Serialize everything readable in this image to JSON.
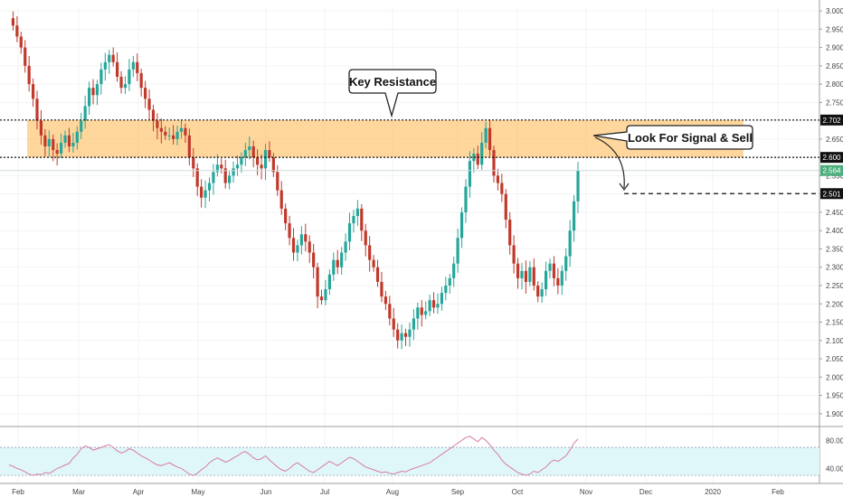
{
  "chart_data": {
    "type": "candlestick",
    "price_axis": {
      "ticks": [
        "3.000",
        "2.950",
        "2.900",
        "2.850",
        "2.800",
        "2.750",
        "2.700",
        "2.650",
        "2.600",
        "2.550",
        "2.500",
        "2.450",
        "2.400",
        "2.350",
        "2.300",
        "2.250",
        "2.200",
        "2.150",
        "2.100",
        "2.050",
        "2.000",
        "1.950",
        "1.900"
      ],
      "ylim": [
        1.87,
        3.01
      ]
    },
    "time_axis": {
      "labels": [
        "Feb",
        "Mar",
        "Apr",
        "May",
        "Jun",
        "Jul",
        "Aug",
        "Sep",
        "Oct",
        "Nov",
        "Dec",
        "2020",
        "Feb"
      ]
    },
    "levels": [
      {
        "label": "2.702",
        "value": 2.702,
        "style": "dotted"
      },
      {
        "label": "2.600",
        "value": 2.6,
        "style": "dotted"
      },
      {
        "label": "2.564",
        "value": 2.564,
        "style": "last-price"
      },
      {
        "label": "2.501",
        "value": 2.501,
        "style": "dashed-target"
      }
    ],
    "resistance_zone": {
      "from": 2.6,
      "to": 2.702,
      "color": "#f9a825"
    },
    "annotations": [
      {
        "text": "Key Resistance"
      },
      {
        "text": "Look For Signal & Sell"
      }
    ],
    "colors": {
      "up": "#26a69a",
      "down": "#c0392b",
      "zone": "#ffb74d",
      "rsi_band": "#e0f7fa",
      "rsi_line": "#d77aa6"
    },
    "closes": [
      2.98,
      2.96,
      2.93,
      2.9,
      2.85,
      2.8,
      2.76,
      2.7,
      2.66,
      2.63,
      2.65,
      2.62,
      2.61,
      2.64,
      2.66,
      2.63,
      2.64,
      2.67,
      2.7,
      2.74,
      2.79,
      2.77,
      2.8,
      2.84,
      2.86,
      2.88,
      2.86,
      2.82,
      2.79,
      2.8,
      2.84,
      2.86,
      2.83,
      2.79,
      2.76,
      2.73,
      2.7,
      2.68,
      2.67,
      2.66,
      2.66,
      2.65,
      2.67,
      2.68,
      2.66,
      2.6,
      2.57,
      2.52,
      2.49,
      2.51,
      2.53,
      2.56,
      2.58,
      2.57,
      2.53,
      2.55,
      2.57,
      2.58,
      2.6,
      2.62,
      2.63,
      2.6,
      2.58,
      2.57,
      2.62,
      2.6,
      2.56,
      2.51,
      2.46,
      2.42,
      2.38,
      2.34,
      2.36,
      2.39,
      2.37,
      2.34,
      2.3,
      2.22,
      2.21,
      2.24,
      2.28,
      2.32,
      2.3,
      2.34,
      2.37,
      2.42,
      2.44,
      2.46,
      2.4,
      2.36,
      2.32,
      2.3,
      2.26,
      2.22,
      2.2,
      2.16,
      2.13,
      2.1,
      2.12,
      2.11,
      2.13,
      2.16,
      2.19,
      2.17,
      2.18,
      2.21,
      2.19,
      2.2,
      2.23,
      2.25,
      2.27,
      2.31,
      2.38,
      2.45,
      2.52,
      2.59,
      2.61,
      2.58,
      2.64,
      2.68,
      2.62,
      2.55,
      2.53,
      2.5,
      2.43,
      2.36,
      2.31,
      2.27,
      2.29,
      2.26,
      2.3,
      2.25,
      2.22,
      2.24,
      2.29,
      2.31,
      2.27,
      2.25,
      2.29,
      2.33,
      2.4,
      2.48,
      2.564
    ],
    "rsi": {
      "ticks": [
        "80.00",
        "40.00"
      ],
      "ylim": [
        25,
        92
      ],
      "band": [
        30,
        70
      ],
      "values": [
        45,
        43,
        40,
        38,
        35,
        32,
        30,
        32,
        31,
        34,
        33,
        36,
        40,
        42,
        45,
        47,
        55,
        60,
        68,
        72,
        70,
        66,
        68,
        70,
        72,
        74,
        70,
        65,
        62,
        64,
        68,
        66,
        62,
        58,
        55,
        52,
        48,
        45,
        44,
        46,
        48,
        45,
        42,
        40,
        36,
        32,
        30,
        33,
        38,
        42,
        48,
        52,
        55,
        52,
        49,
        51,
        55,
        58,
        62,
        64,
        60,
        55,
        52,
        54,
        58,
        52,
        47,
        42,
        38,
        36,
        40,
        45,
        48,
        44,
        40,
        36,
        34,
        38,
        42,
        46,
        50,
        47,
        44,
        48,
        52,
        56,
        54,
        50,
        46,
        42,
        40,
        38,
        36,
        34,
        35,
        33,
        32,
        34,
        36,
        35,
        38,
        40,
        42,
        44,
        46,
        48,
        52,
        56,
        60,
        64,
        68,
        72,
        76,
        80,
        84,
        86,
        82,
        78,
        84,
        80,
        74,
        66,
        60,
        52,
        46,
        42,
        38,
        34,
        32,
        30,
        32,
        36,
        34,
        38,
        42,
        48,
        52,
        50,
        54,
        58,
        66,
        76,
        82
      ]
    }
  }
}
